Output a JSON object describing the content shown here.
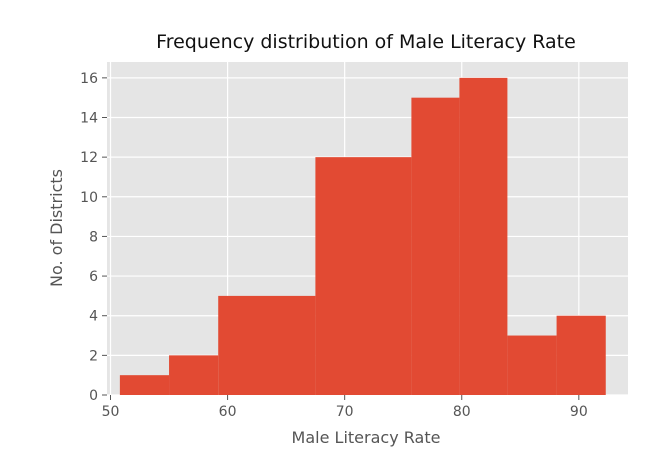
{
  "chart_data": {
    "type": "bar",
    "title": "Frequency distribution of Male Literacy Rate",
    "xlabel": "Male Literacy Rate",
    "ylabel": "No. of Districts",
    "xlim": [
      49.7,
      94.2
    ],
    "ylim": [
      0,
      16.8
    ],
    "xticks": [
      50,
      60,
      70,
      80,
      90
    ],
    "yticks": [
      0,
      2,
      4,
      6,
      8,
      10,
      12,
      14,
      16
    ],
    "bins": [
      {
        "x0": 50.8,
        "x1": 55.0,
        "value": 1
      },
      {
        "x0": 55.0,
        "x1": 59.2,
        "value": 2
      },
      {
        "x0": 59.2,
        "x1": 67.5,
        "value": 5
      },
      {
        "x0": 67.5,
        "x1": 75.7,
        "value": 12
      },
      {
        "x0": 75.7,
        "x1": 79.8,
        "value": 15
      },
      {
        "x0": 79.8,
        "x1": 83.9,
        "value": 16
      },
      {
        "x0": 83.9,
        "x1": 88.1,
        "value": 3
      },
      {
        "x0": 88.1,
        "x1": 92.3,
        "value": 4
      }
    ],
    "grid": true,
    "colors": {
      "background": "#e5e5e5",
      "bar": "#e24a33",
      "grid": "#ffffff"
    }
  }
}
